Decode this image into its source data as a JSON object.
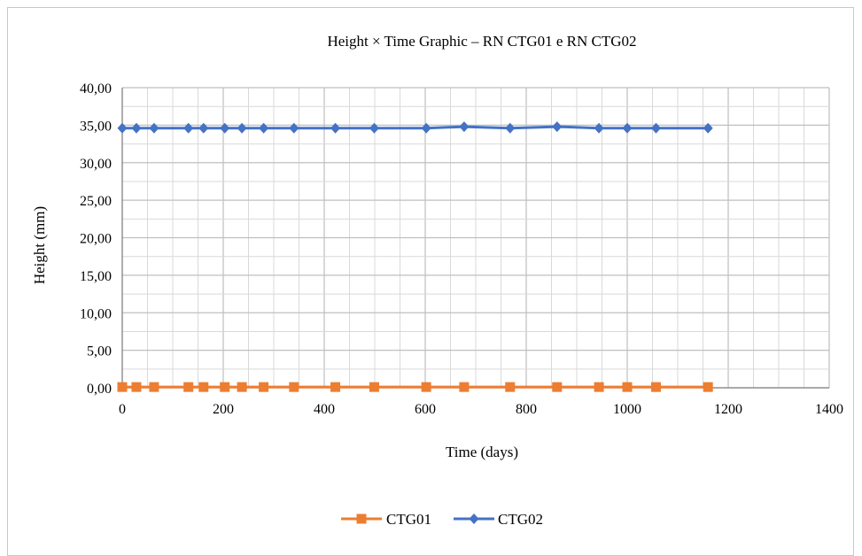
{
  "chart_data": {
    "type": "line",
    "title": "Height × Time Graphic – RN CTG01 e RN CTG02",
    "xlabel": "Time (days)",
    "ylabel": "Height (mm)",
    "xlim": [
      0,
      1400
    ],
    "ylim": [
      0,
      40
    ],
    "x_ticks": [
      0,
      200,
      400,
      600,
      800,
      1000,
      1200,
      1400
    ],
    "x_tick_labels": [
      "0",
      "200",
      "400",
      "600",
      "800",
      "1000",
      "1200",
      "1400"
    ],
    "y_ticks": [
      0,
      5,
      10,
      15,
      20,
      25,
      30,
      35,
      40
    ],
    "y_tick_labels": [
      "0,00",
      "5,00",
      "10,00",
      "15,00",
      "20,00",
      "25,00",
      "30,00",
      "35,00",
      "40,00"
    ],
    "grid": true,
    "legend_position": "bottom-center",
    "series": [
      {
        "name": "CTG01",
        "color": "#ED7D31",
        "marker": "square",
        "x": [
          0,
          28,
          63,
          131,
          161,
          203,
          237,
          280,
          340,
          422,
          499,
          602,
          677,
          768,
          861,
          944,
          1000,
          1057,
          1160
        ],
        "y": [
          0.1,
          0.1,
          0.1,
          0.1,
          0.1,
          0.1,
          0.1,
          0.1,
          0.1,
          0.1,
          0.1,
          0.1,
          0.1,
          0.1,
          0.1,
          0.1,
          0.1,
          0.1,
          0.1
        ]
      },
      {
        "name": "CTG02",
        "color": "#4472C4",
        "marker": "diamond",
        "x": [
          0,
          28,
          63,
          131,
          161,
          203,
          237,
          280,
          340,
          422,
          499,
          602,
          677,
          768,
          861,
          944,
          1000,
          1057,
          1160
        ],
        "y": [
          34.6,
          34.6,
          34.6,
          34.6,
          34.6,
          34.6,
          34.6,
          34.6,
          34.6,
          34.6,
          34.6,
          34.6,
          34.8,
          34.6,
          34.8,
          34.6,
          34.6,
          34.6,
          34.6
        ]
      }
    ]
  }
}
